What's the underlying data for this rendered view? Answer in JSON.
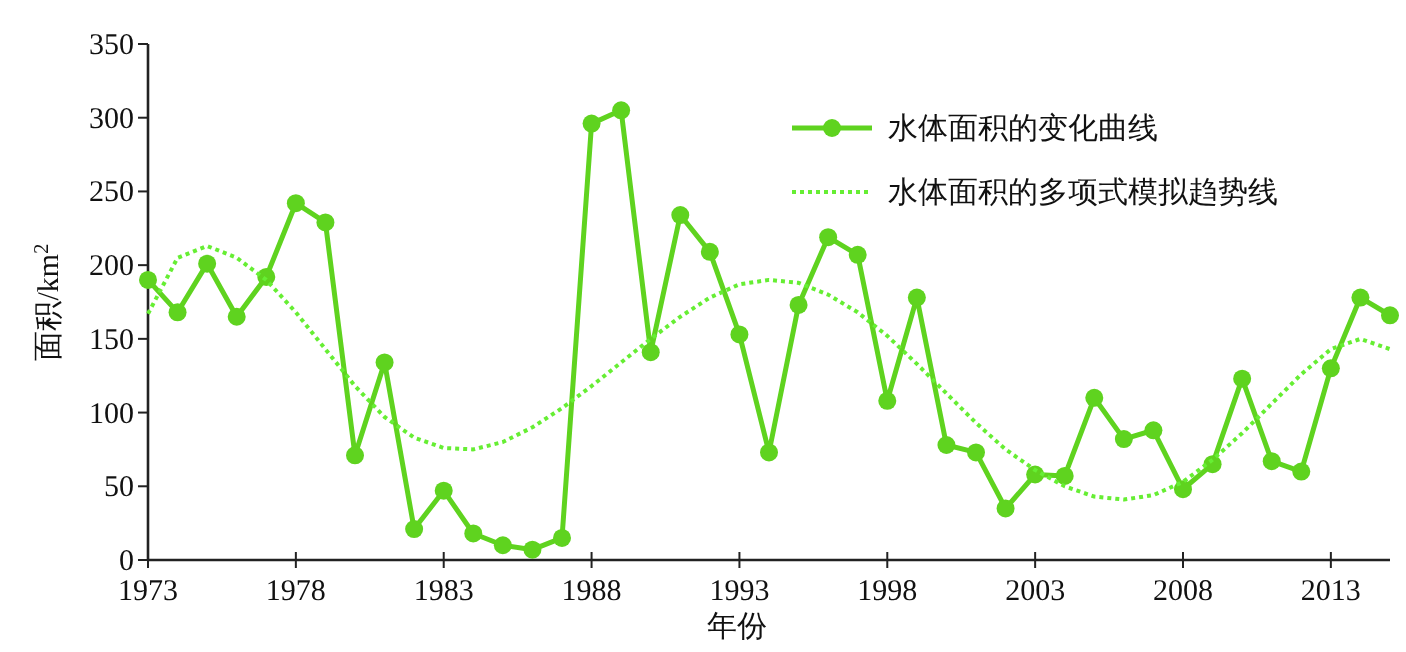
{
  "chart_data": {
    "type": "line",
    "xlabel": "年份",
    "ylabel": "面积/km$^{2}$",
    "x": [
      1973,
      1974,
      1975,
      1976,
      1977,
      1978,
      1979,
      1980,
      1981,
      1982,
      1983,
      1984,
      1985,
      1986,
      1987,
      1988,
      1989,
      1990,
      1991,
      1992,
      1993,
      1994,
      1995,
      1996,
      1997,
      1998,
      1999,
      2000,
      2001,
      2002,
      2003,
      2004,
      2005,
      2006,
      2007,
      2008,
      2009,
      2010,
      2011,
      2012,
      2013,
      2014,
      2015
    ],
    "series": [
      {
        "name": "水体面积的变化曲线",
        "color": "#5fd31f",
        "marker": "circle",
        "line_style": "solid",
        "values": [
          190,
          168,
          201,
          165,
          192,
          242,
          229,
          71,
          134,
          21,
          47,
          18,
          10,
          7,
          15,
          296,
          305,
          141,
          234,
          209,
          153,
          73,
          173,
          219,
          207,
          108,
          178,
          78,
          73,
          35,
          58,
          57,
          110,
          82,
          88,
          48,
          65,
          123,
          67,
          60,
          130,
          178,
          166
        ]
      },
      {
        "name": "水体面积的多项式模拟趋势线",
        "color": "#66ee33",
        "marker": "none",
        "line_style": "dotted",
        "values": [
          167,
          205,
          213,
          205,
          190,
          168,
          143,
          118,
          97,
          83,
          76,
          75,
          80,
          90,
          103,
          118,
          134,
          150,
          165,
          178,
          187,
          190,
          188,
          180,
          168,
          152,
          133,
          113,
          93,
          75,
          61,
          50,
          43,
          41,
          44,
          53,
          68,
          86,
          106,
          126,
          143,
          150,
          143
        ]
      }
    ],
    "xlim": [
      1973,
      2015
    ],
    "xticks": [
      1973,
      1978,
      1983,
      1988,
      1993,
      1998,
      2003,
      2008,
      2013
    ],
    "ylim": [
      0,
      350
    ],
    "yticks": [
      0,
      50,
      100,
      150,
      200,
      250,
      300,
      350
    ],
    "grid": false,
    "legend": "top right"
  }
}
